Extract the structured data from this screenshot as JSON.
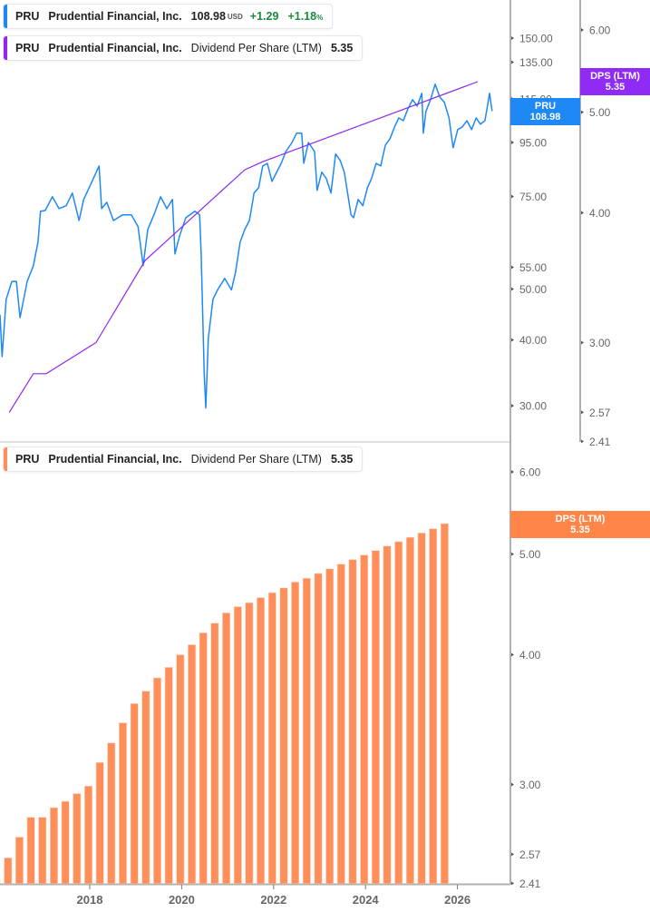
{
  "legends": {
    "price": {
      "ticker": "PRU",
      "company": "Prudential Financial, Inc.",
      "price": "108.98",
      "currency": "USD",
      "change": "+1.29",
      "change_pct": "+1.18",
      "pct_sign": "%"
    },
    "dps_top": {
      "ticker": "PRU",
      "company": "Prudential Financial, Inc.",
      "metric": "Dividend Per Share (LTM)",
      "value": "5.35"
    },
    "dps_bottom": {
      "ticker": "PRU",
      "company": "Prudential Financial, Inc.",
      "metric": "Dividend Per Share (LTM)",
      "value": "5.35"
    }
  },
  "badges": {
    "price": {
      "label": "PRU",
      "value": "108.98"
    },
    "dps_top": {
      "label": "DPS (LTM)",
      "value": "5.35"
    },
    "dps_bottom": {
      "label": "DPS (LTM)",
      "value": "5.35"
    }
  },
  "colors": {
    "price_line": "#1E88F5",
    "dps_line": "#9226F0",
    "dps_badge_top": "#8F2BF5",
    "bars": "#FF8F5A",
    "dps_badge_bottom": "#FF8548",
    "positive": "#1B8A3C",
    "axis": "#b0b0b0",
    "tick_text": "#666666"
  },
  "chart_data": [
    {
      "type": "line",
      "scale": "log",
      "grid": false,
      "price_axis": {
        "ticks": [
          "150.00",
          "135.00",
          "115.00",
          "95.00",
          "75.00",
          "55.00",
          "50.00",
          "40.00",
          "30.00"
        ]
      },
      "dps_axis": {
        "ticks": [
          "6.00",
          "5.00",
          "4.00",
          "3.00",
          "2.57",
          "2.41"
        ]
      },
      "series": [
        {
          "name": "PRU",
          "axis": "price",
          "x": [
            2016.21,
            2016.25,
            2016.33,
            2016.44,
            2016.53,
            2016.6,
            2016.74,
            2016.86,
            2016.95,
            2017.0,
            2017.09,
            2017.23,
            2017.36,
            2017.5,
            2017.62,
            2017.75,
            2017.84,
            2017.98,
            2018.14,
            2018.19,
            2018.29,
            2018.42,
            2018.6,
            2018.77,
            2018.9,
            2019.0,
            2019.09,
            2019.21,
            2019.34,
            2019.46,
            2019.57,
            2019.62,
            2019.71,
            2019.83,
            2020.01,
            2020.1,
            2020.13,
            2020.19,
            2020.22,
            2020.27,
            2020.36,
            2020.45,
            2020.59,
            2020.72,
            2020.8,
            2020.89,
            2020.98,
            2021.07,
            2021.14,
            2021.16,
            2021.25,
            2021.33,
            2021.42,
            2021.51,
            2021.69,
            2021.78,
            2021.9,
            2021.99,
            2022.09,
            2022.13,
            2022.22,
            2022.34,
            2022.39,
            2022.48,
            2022.57,
            2022.66,
            2022.75,
            2022.84,
            2022.92,
            2023.05,
            2023.1,
            2023.19,
            2023.28,
            2023.37,
            2023.45,
            2023.54,
            2023.63,
            2023.72,
            2023.81,
            2023.9,
            2023.98,
            2024.07,
            2024.16,
            2024.25,
            2024.34,
            2024.43,
            2024.46,
            2024.51,
            2024.6,
            2024.69,
            2024.78,
            2024.87,
            2024.96,
            2025.04,
            2025.13,
            2025.22,
            2025.31,
            2025.4,
            2025.49,
            2025.57,
            2025.66,
            2025.7,
            2025.75,
            2025.8
          ],
          "y": [
            44.7,
            37.2,
            47.8,
            51.7,
            51.7,
            44.1,
            51.7,
            55.4,
            61.4,
            70.3,
            70.5,
            74.9,
            71.1,
            72.0,
            76.1,
            67.5,
            74.0,
            79.2,
            85.7,
            71.1,
            73.1,
            67.5,
            69.2,
            69.2,
            65.7,
            55.4,
            64.9,
            69.2,
            74.9,
            71.1,
            74.0,
            58.3,
            63.1,
            68.3,
            70.3,
            69.2,
            58.3,
            34.4,
            29.7,
            40.3,
            47.8,
            49.8,
            52.4,
            49.8,
            53.8,
            61.4,
            64.9,
            67.5,
            74.0,
            76.1,
            77.9,
            85.7,
            86.7,
            80.1,
            86.7,
            91.3,
            95.0,
            98.9,
            98.9,
            86.7,
            95.0,
            91.3,
            77.0,
            83.4,
            81.1,
            76.1,
            90.3,
            87.8,
            83.4,
            69.2,
            68.3,
            74.0,
            72.0,
            77.9,
            81.1,
            86.7,
            85.7,
            93.9,
            96.6,
            101.7,
            105.8,
            104.5,
            110.1,
            114.6,
            111.4,
            117.8,
            98.9,
            108.8,
            114.6,
            122.6,
            115.9,
            113.2,
            105.8,
            92.8,
            100.5,
            101.7,
            104.5,
            100.5,
            105.8,
            102.9,
            104.5,
            110.1,
            117.8,
            108.98
          ]
        },
        {
          "name": "Dividend Per Share (LTM)",
          "axis": "dps",
          "x": [
            2016.39,
            2016.86,
            2017.11,
            2018.08,
            2019.04,
            2020.98,
            2021.33,
            2025.52
          ],
          "y": [
            2.57,
            2.8,
            2.8,
            3.0,
            3.6,
            4.4,
            4.48,
            5.35
          ]
        }
      ]
    },
    {
      "type": "bar",
      "scale": "log",
      "grid": false,
      "x_ticks": [
        "2018",
        "2020",
        "2022",
        "2024",
        "2026"
      ],
      "y_ticks": [
        "6.00",
        "5.00",
        "4.00",
        "3.00",
        "2.57",
        "2.41"
      ],
      "series": [
        {
          "name": "Dividend Per Share (LTM)",
          "categories": [
            "2015-Q4",
            "2016-Q1",
            "2016-Q2",
            "2016-Q3",
            "2016-Q4",
            "2017-Q1",
            "2017-Q2",
            "2017-Q3",
            "2017-Q4",
            "2018-Q1",
            "2018-Q2",
            "2018-Q3",
            "2018-Q4",
            "2019-Q1",
            "2019-Q2",
            "2019-Q3",
            "2019-Q4",
            "2020-Q1",
            "2020-Q2",
            "2020-Q3",
            "2020-Q4",
            "2021-Q1",
            "2021-Q2",
            "2021-Q3",
            "2021-Q4",
            "2022-Q1",
            "2022-Q2",
            "2022-Q3",
            "2022-Q4",
            "2023-Q1",
            "2023-Q2",
            "2023-Q3",
            "2023-Q4",
            "2024-Q1",
            "2024-Q2",
            "2024-Q3",
            "2024-Q4",
            "2025-Q1",
            "2025-Q2",
            "2025-Q3"
          ],
          "values": [
            2.43,
            2.55,
            2.67,
            2.79,
            2.79,
            2.85,
            2.89,
            2.94,
            2.99,
            3.15,
            3.29,
            3.44,
            3.59,
            3.69,
            3.8,
            3.89,
            4.0,
            4.09,
            4.2,
            4.29,
            4.39,
            4.45,
            4.49,
            4.54,
            4.59,
            4.64,
            4.7,
            4.74,
            4.79,
            4.84,
            4.89,
            4.94,
            4.99,
            5.04,
            5.09,
            5.14,
            5.19,
            5.24,
            5.29,
            5.35
          ]
        }
      ]
    }
  ]
}
